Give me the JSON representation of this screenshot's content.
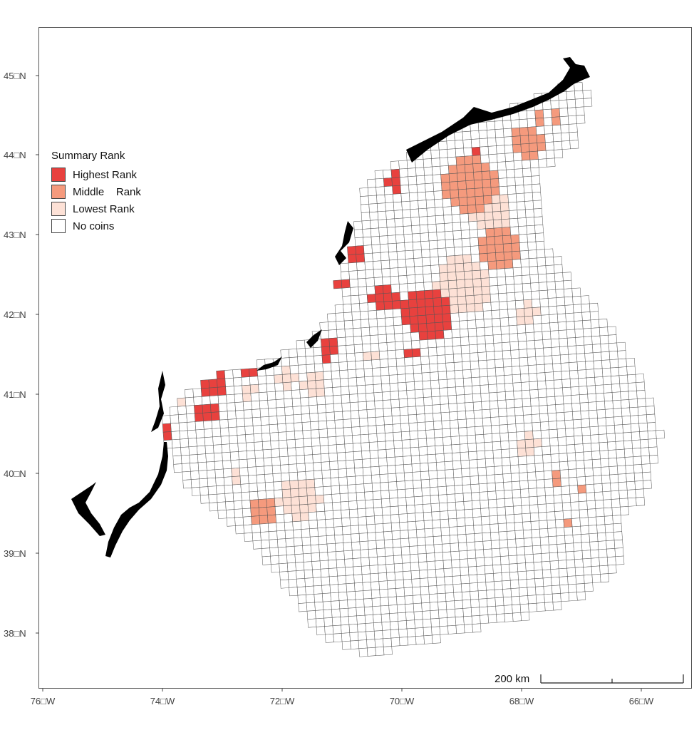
{
  "map": {
    "lat_axis": [
      "45□N",
      "44□N",
      "43□N",
      "42□N",
      "41□N",
      "40□N",
      "39□N",
      "38□N"
    ],
    "lon_axis": [
      "76□W",
      "74□W",
      "72□W",
      "70□W",
      "68□W",
      "66□W"
    ],
    "legend": {
      "title": "Summary Rank",
      "items": [
        {
          "label": "Highest Rank",
          "color": "#e8413e"
        },
        {
          "label": "Middle    Rank",
          "color": "#f59a7d"
        },
        {
          "label": "Lowest Rank",
          "color": "#fde1d6"
        },
        {
          "label": "No coins",
          "color": "#ffffff"
        }
      ]
    },
    "scalebar": {
      "label": "200 km"
    },
    "colors": {
      "grid_line": "#555555",
      "coast": "#000000"
    }
  }
}
